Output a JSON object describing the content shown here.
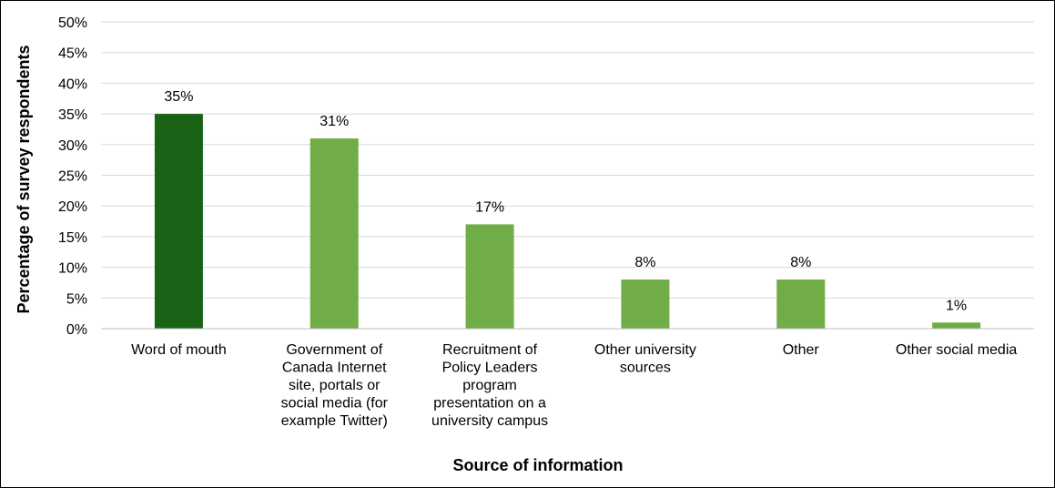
{
  "chart_data": {
    "type": "bar",
    "xlabel": "Source of information",
    "ylabel": "Percentage of survey respondents",
    "ylim": [
      0,
      50
    ],
    "y_ticks": [
      "0%",
      "5%",
      "10%",
      "15%",
      "20%",
      "25%",
      "30%",
      "35%",
      "40%",
      "45%",
      "50%"
    ],
    "grid": true,
    "categories": [
      "Word of mouth",
      "Government of Canada Internet site, portals or social media (for example Twitter)",
      "Recruitment of Policy Leaders program presentation on a university campus",
      "Other university sources",
      "Other",
      "Other social media"
    ],
    "category_lines": [
      [
        "Word of mouth"
      ],
      [
        "Government of",
        "Canada Internet",
        "site, portals or",
        "social media (for",
        "example Twitter)"
      ],
      [
        "Recruitment of",
        "Policy Leaders",
        "program",
        "presentation on a",
        "university campus"
      ],
      [
        "Other university",
        "sources"
      ],
      [
        "Other"
      ],
      [
        "Other social media"
      ]
    ],
    "values": [
      35,
      31,
      17,
      8,
      8,
      1
    ],
    "data_labels": [
      "35%",
      "31%",
      "17%",
      "8%",
      "8%",
      "1%"
    ],
    "colors": {
      "highlight": "#1a6316",
      "bar": "#70ad47",
      "grid": "#d9d9d9",
      "axis": "#bfbfbf"
    },
    "highlight_index": 0
  }
}
